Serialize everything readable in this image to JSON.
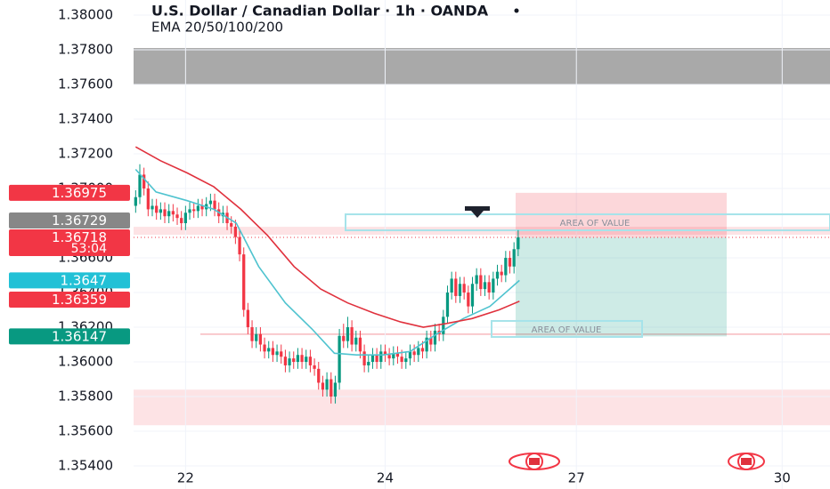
{
  "chart_data": {
    "type": "candlestick",
    "title": "U.S. Dollar / Canadian Dollar · 1h · OANDA",
    "subtitle": "EMA 20/50/100/200",
    "xlim": [
      -0.5,
      167.0
    ],
    "ylim": [
      1.35267,
      1.38087
    ],
    "xticks": [
      {
        "value": 12,
        "label": "22"
      },
      {
        "value": 60,
        "label": "24"
      },
      {
        "value": 106,
        "label": "27"
      },
      {
        "value": 155.5,
        "label": "30"
      }
    ],
    "yticks": [
      {
        "value": 1.38,
        "label": "1.38000"
      },
      {
        "value": 1.378,
        "label": "1.37800"
      },
      {
        "value": 1.376,
        "label": "1.37600"
      },
      {
        "value": 1.374,
        "label": "1.37400"
      },
      {
        "value": 1.372,
        "label": "1.37200"
      },
      {
        "value": 1.37,
        "label": "1.37000"
      },
      {
        "value": 1.366,
        "label": "1.36600"
      },
      {
        "value": 1.364,
        "label": "1.36400"
      },
      {
        "value": 1.362,
        "label": "1.36200"
      },
      {
        "value": 1.36,
        "label": "1.36000"
      },
      {
        "value": 1.358,
        "label": "1.35800"
      },
      {
        "value": 1.356,
        "label": "1.35600"
      },
      {
        "value": 1.354,
        "label": "1.35400"
      }
    ],
    "grid": true,
    "up_color": "#089981",
    "down_color": "#f23645",
    "open": [
      1.369,
      1.3695,
      1.3708,
      1.37,
      1.3688,
      1.369,
      1.3686,
      1.3688,
      1.3684,
      1.3687,
      1.3685,
      1.3683,
      1.368,
      1.3686,
      1.3688,
      1.3687,
      1.369,
      1.3688,
      1.3691,
      1.3693,
      1.3688,
      1.3684,
      1.3686,
      1.368,
      1.3678,
      1.3672,
      1.3662,
      1.363,
      1.362,
      1.3612,
      1.3616,
      1.361,
      1.3606,
      1.3608,
      1.3604,
      1.3606,
      1.3603,
      1.3598,
      1.3602,
      1.36,
      1.3604,
      1.36,
      1.3603,
      1.3598,
      1.3596,
      1.3588,
      1.3584,
      1.359,
      1.358,
      1.3588,
      1.3615,
      1.3612,
      1.362,
      1.361,
      1.3614,
      1.3606,
      1.3598,
      1.36,
      1.3604,
      1.36,
      1.3606,
      1.3604,
      1.3602,
      1.3605,
      1.3603,
      1.36,
      1.3602,
      1.3606,
      1.3604,
      1.3608,
      1.3606,
      1.3614,
      1.361,
      1.3618,
      1.3616,
      1.3626,
      1.364,
      1.3648,
      1.3638,
      1.3645,
      1.364,
      1.3632,
      1.3645,
      1.365,
      1.3642,
      1.3646,
      1.364,
      1.3648,
      1.3652,
      1.365,
      1.366,
      1.3655,
      1.3665
    ],
    "high": [
      1.3699,
      1.3714,
      1.3712,
      1.3704,
      1.3694,
      1.3694,
      1.3692,
      1.3692,
      1.3691,
      1.3691,
      1.3689,
      1.3687,
      1.369,
      1.3692,
      1.3692,
      1.3694,
      1.3694,
      1.3695,
      1.3697,
      1.3697,
      1.3692,
      1.369,
      1.369,
      1.3684,
      1.3682,
      1.3676,
      1.3666,
      1.3634,
      1.3624,
      1.362,
      1.362,
      1.3614,
      1.3612,
      1.3612,
      1.361,
      1.361,
      1.3607,
      1.3606,
      1.3606,
      1.3608,
      1.3608,
      1.3607,
      1.3607,
      1.3602,
      1.36,
      1.3592,
      1.3594,
      1.3594,
      1.3592,
      1.3619,
      1.3622,
      1.3626,
      1.3624,
      1.3618,
      1.3618,
      1.361,
      1.3604,
      1.3608,
      1.3608,
      1.361,
      1.361,
      1.3608,
      1.3609,
      1.3609,
      1.3607,
      1.3606,
      1.361,
      1.361,
      1.3612,
      1.3612,
      1.3618,
      1.3618,
      1.3622,
      1.3622,
      1.363,
      1.3644,
      1.3652,
      1.3652,
      1.3649,
      1.3649,
      1.3644,
      1.3649,
      1.3654,
      1.3654,
      1.365,
      1.365,
      1.3652,
      1.3656,
      1.3656,
      1.3664,
      1.3664,
      1.3669,
      1.3676
    ],
    "low": [
      1.3686,
      1.3691,
      1.3696,
      1.3684,
      1.3684,
      1.3682,
      1.3682,
      1.368,
      1.368,
      1.3681,
      1.3679,
      1.3676,
      1.3676,
      1.3682,
      1.3683,
      1.3683,
      1.3684,
      1.3684,
      1.3687,
      1.3684,
      1.368,
      1.368,
      1.3676,
      1.3674,
      1.3668,
      1.3658,
      1.3626,
      1.3616,
      1.3608,
      1.3608,
      1.3606,
      1.3602,
      1.3602,
      1.36,
      1.36,
      1.3599,
      1.3594,
      1.3594,
      1.3596,
      1.3596,
      1.3596,
      1.3596,
      1.3594,
      1.3592,
      1.3584,
      1.358,
      1.358,
      1.3576,
      1.3576,
      1.3584,
      1.3608,
      1.3608,
      1.3606,
      1.3606,
      1.3602,
      1.3594,
      1.3594,
      1.3596,
      1.3596,
      1.3596,
      1.36,
      1.3598,
      1.3598,
      1.3599,
      1.3596,
      1.3596,
      1.3598,
      1.36,
      1.36,
      1.3602,
      1.3602,
      1.3606,
      1.3606,
      1.3612,
      1.3612,
      1.3622,
      1.3636,
      1.3634,
      1.3634,
      1.3636,
      1.3628,
      1.3628,
      1.3641,
      1.3638,
      1.3638,
      1.3636,
      1.3636,
      1.3644,
      1.3646,
      1.3646,
      1.3651,
      1.3651,
      1.3661
    ],
    "close": [
      1.3695,
      1.3708,
      1.37,
      1.3688,
      1.369,
      1.3686,
      1.3688,
      1.3684,
      1.3687,
      1.3685,
      1.3683,
      1.368,
      1.3686,
      1.3688,
      1.3687,
      1.369,
      1.3688,
      1.3691,
      1.3693,
      1.3688,
      1.3684,
      1.3686,
      1.368,
      1.3678,
      1.3672,
      1.3662,
      1.363,
      1.362,
      1.3612,
      1.3616,
      1.361,
      1.3606,
      1.3608,
      1.3604,
      1.3606,
      1.3603,
      1.3598,
      1.3602,
      1.36,
      1.3604,
      1.36,
      1.3603,
      1.3598,
      1.3596,
      1.3588,
      1.3584,
      1.359,
      1.358,
      1.3588,
      1.3615,
      1.3612,
      1.362,
      1.361,
      1.3614,
      1.3606,
      1.3598,
      1.36,
      1.3604,
      1.36,
      1.3606,
      1.3604,
      1.3602,
      1.3605,
      1.3603,
      1.36,
      1.3602,
      1.3606,
      1.3604,
      1.3608,
      1.3606,
      1.3614,
      1.361,
      1.3618,
      1.3616,
      1.3626,
      1.364,
      1.3648,
      1.3638,
      1.3645,
      1.364,
      1.3632,
      1.3645,
      1.365,
      1.3642,
      1.3646,
      1.364,
      1.3648,
      1.3652,
      1.365,
      1.366,
      1.3655,
      1.3665,
      1.36718
    ],
    "series": [
      {
        "color": "#4fc3cf",
        "x": [
          0,
          4.9,
          12.4,
          18.8,
          24.2,
          29.6,
          36,
          42.4,
          47.8,
          53.1,
          59.5,
          66,
          72.4,
          78.8,
          85.2,
          92.3
        ],
        "values": [
          1.3711,
          1.3698,
          1.3693,
          1.3688,
          1.368,
          1.3655,
          1.3634,
          1.3619,
          1.3605,
          1.3604,
          1.3604,
          1.3606,
          1.3616,
          1.3625,
          1.3632,
          1.3647
        ]
      },
      {
        "color": "#e0313d",
        "x": [
          0,
          6,
          12.4,
          18.8,
          25.3,
          31.7,
          38.1,
          44.5,
          51,
          57.4,
          63.8,
          69.2,
          74.5,
          80.9,
          87.4,
          92.3
        ],
        "values": [
          1.3724,
          1.3716,
          1.3709,
          1.3701,
          1.3688,
          1.3673,
          1.3655,
          1.3642,
          1.3634,
          1.3628,
          1.3623,
          1.362,
          1.3622,
          1.3625,
          1.363,
          1.3635
        ]
      }
    ],
    "zones": [
      {
        "from": 1.376,
        "to": 1.3781,
        "color": "#a9a9a9"
      },
      {
        "from": 1.35635,
        "to": 1.3584,
        "color": "#fde3e5"
      },
      {
        "from": 1.36733,
        "to": 1.36779,
        "color": "#fde3e5"
      }
    ],
    "support_line": 1.3616,
    "price_labels": [
      {
        "value": 1.36975,
        "color": "#f23645"
      },
      {
        "value": 1.36729,
        "color": "#878787"
      },
      {
        "value": 1.36718,
        "color": "#f23645",
        "countdown": "53:04"
      },
      {
        "value": 1.3647,
        "color": "#22c1d6"
      },
      {
        "value": 1.36359,
        "color": "#f23645"
      },
      {
        "value": 1.36147,
        "color": "#089981"
      }
    ],
    "annotations": [
      {
        "text": "AREA OF VALUE",
        "value": 1.36805
      },
      {
        "text": "AREA OF VALUE",
        "value": 1.3619
      }
    ]
  }
}
